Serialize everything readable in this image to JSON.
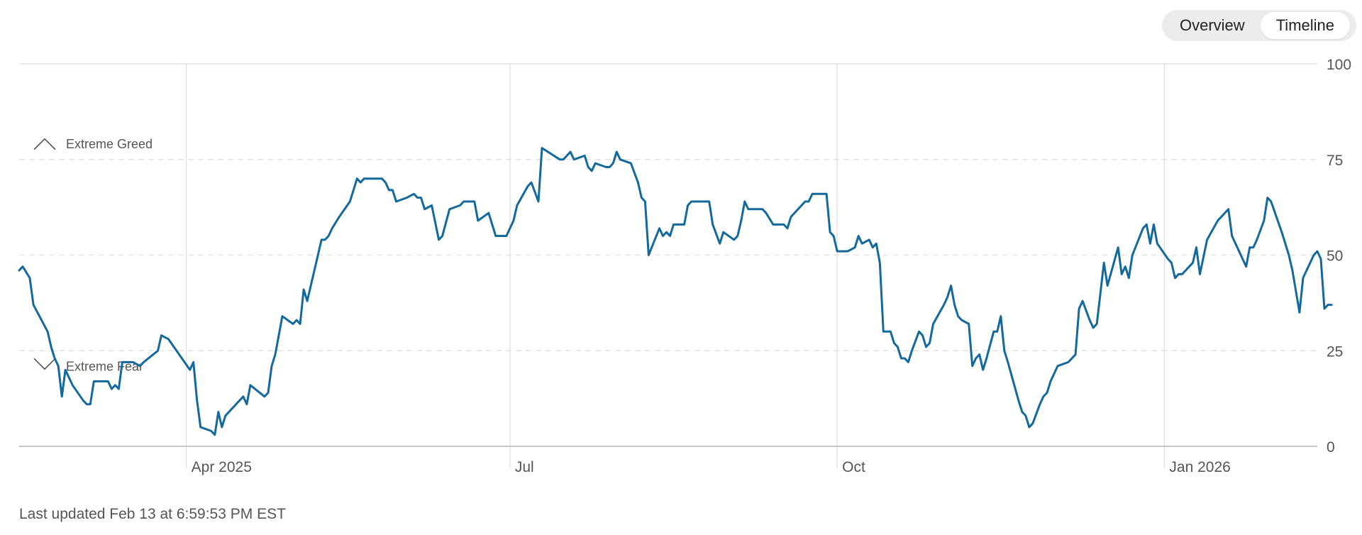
{
  "toggle": {
    "overview_label": "Overview",
    "timeline_label": "Timeline",
    "active": "Timeline"
  },
  "footer": {
    "last_updated": "Last updated Feb 13 at 6:59:53 PM EST"
  },
  "chart_data": {
    "type": "line",
    "title": "",
    "xlabel": "",
    "ylabel": "",
    "ylim": [
      0,
      100
    ],
    "y_ticks": [
      0,
      25,
      50,
      75,
      100
    ],
    "x_tick_labels": [
      {
        "label": "Apr 2025",
        "x": "2025-04-01"
      },
      {
        "label": "Jul",
        "x": "2025-07-01"
      },
      {
        "label": "Oct",
        "x": "2025-10-01"
      },
      {
        "label": "Jan 2026",
        "x": "2026-01-01"
      }
    ],
    "x_range": [
      "2025-02-13",
      "2026-02-13"
    ],
    "zones": [
      {
        "label": "Extreme Greed",
        "icon": "chevron-up-icon",
        "level": 75
      },
      {
        "label": "Extreme Fear",
        "icon": "chevron-down-icon",
        "level": 25
      }
    ],
    "line_color": "#13699c",
    "series": [
      {
        "points": [
          [
            "2025-02-13",
            46
          ],
          [
            "2025-02-14",
            47
          ],
          [
            "2025-02-16",
            44
          ],
          [
            "2025-02-17",
            37
          ],
          [
            "2025-02-21",
            30
          ],
          [
            "2025-02-22",
            26
          ],
          [
            "2025-02-23",
            23
          ],
          [
            "2025-02-24",
            21
          ],
          [
            "2025-02-25",
            13
          ],
          [
            "2025-02-26",
            20
          ],
          [
            "2025-02-28",
            16
          ],
          [
            "2025-03-03",
            12
          ],
          [
            "2025-03-04",
            11
          ],
          [
            "2025-03-05",
            11
          ],
          [
            "2025-03-06",
            17
          ],
          [
            "2025-03-07",
            17
          ],
          [
            "2025-03-10",
            17
          ],
          [
            "2025-03-11",
            15
          ],
          [
            "2025-03-12",
            16
          ],
          [
            "2025-03-13",
            15
          ],
          [
            "2025-03-14",
            22
          ],
          [
            "2025-03-17",
            22
          ],
          [
            "2025-03-19",
            21
          ],
          [
            "2025-03-20",
            22
          ],
          [
            "2025-03-24",
            25
          ],
          [
            "2025-03-25",
            29
          ],
          [
            "2025-03-27",
            28
          ],
          [
            "2025-04-02",
            20
          ],
          [
            "2025-04-03",
            22
          ],
          [
            "2025-04-04",
            12
          ],
          [
            "2025-04-05",
            5
          ],
          [
            "2025-04-08",
            4
          ],
          [
            "2025-04-09",
            3
          ],
          [
            "2025-04-10",
            9
          ],
          [
            "2025-04-11",
            5
          ],
          [
            "2025-04-12",
            8
          ],
          [
            "2025-04-16",
            12
          ],
          [
            "2025-04-17",
            13
          ],
          [
            "2025-04-18",
            11
          ],
          [
            "2025-04-19",
            16
          ],
          [
            "2025-04-23",
            13
          ],
          [
            "2025-04-24",
            14
          ],
          [
            "2025-04-25",
            21
          ],
          [
            "2025-04-26",
            24
          ],
          [
            "2025-04-28",
            34
          ],
          [
            "2025-05-01",
            32
          ],
          [
            "2025-05-02",
            33
          ],
          [
            "2025-05-03",
            32
          ],
          [
            "2025-05-04",
            41
          ],
          [
            "2025-05-05",
            38
          ],
          [
            "2025-05-08",
            50
          ],
          [
            "2025-05-09",
            54
          ],
          [
            "2025-05-10",
            54
          ],
          [
            "2025-05-11",
            55
          ],
          [
            "2025-05-12",
            57
          ],
          [
            "2025-05-14",
            60
          ],
          [
            "2025-05-17",
            64
          ],
          [
            "2025-05-18",
            67
          ],
          [
            "2025-05-19",
            70
          ],
          [
            "2025-05-20",
            69
          ],
          [
            "2025-05-21",
            70
          ],
          [
            "2025-05-23",
            70
          ],
          [
            "2025-05-26",
            70
          ],
          [
            "2025-05-27",
            69
          ],
          [
            "2025-05-28",
            67
          ],
          [
            "2025-05-29",
            67
          ],
          [
            "2025-05-30",
            64
          ],
          [
            "2025-06-02",
            65
          ],
          [
            "2025-06-04",
            66
          ],
          [
            "2025-06-05",
            65
          ],
          [
            "2025-06-06",
            65
          ],
          [
            "2025-06-07",
            62
          ],
          [
            "2025-06-09",
            63
          ],
          [
            "2025-06-11",
            54
          ],
          [
            "2025-06-12",
            55
          ],
          [
            "2025-06-14",
            62
          ],
          [
            "2025-06-17",
            63
          ],
          [
            "2025-06-18",
            64
          ],
          [
            "2025-06-21",
            64
          ],
          [
            "2025-06-22",
            59
          ],
          [
            "2025-06-25",
            61
          ],
          [
            "2025-06-27",
            55
          ],
          [
            "2025-06-30",
            55
          ],
          [
            "2025-07-01",
            57
          ],
          [
            "2025-07-02",
            59
          ],
          [
            "2025-07-03",
            63
          ],
          [
            "2025-07-06",
            68
          ],
          [
            "2025-07-07",
            69
          ],
          [
            "2025-07-09",
            64
          ],
          [
            "2025-07-10",
            78
          ],
          [
            "2025-07-15",
            75
          ],
          [
            "2025-07-16",
            75
          ],
          [
            "2025-07-18",
            77
          ],
          [
            "2025-07-19",
            75
          ],
          [
            "2025-07-22",
            76
          ],
          [
            "2025-07-23",
            73
          ],
          [
            "2025-07-24",
            72
          ],
          [
            "2025-07-25",
            74
          ],
          [
            "2025-07-28",
            73
          ],
          [
            "2025-07-29",
            73
          ],
          [
            "2025-07-30",
            74
          ],
          [
            "2025-07-31",
            77
          ],
          [
            "2025-08-01",
            75
          ],
          [
            "2025-08-04",
            74
          ],
          [
            "2025-08-06",
            69
          ],
          [
            "2025-08-07",
            65
          ],
          [
            "2025-08-08",
            64
          ],
          [
            "2025-08-09",
            50
          ],
          [
            "2025-08-12",
            57
          ],
          [
            "2025-08-13",
            55
          ],
          [
            "2025-08-14",
            56
          ],
          [
            "2025-08-15",
            55
          ],
          [
            "2025-08-16",
            58
          ],
          [
            "2025-08-19",
            58
          ],
          [
            "2025-08-20",
            63
          ],
          [
            "2025-08-21",
            64
          ],
          [
            "2025-08-26",
            64
          ],
          [
            "2025-08-27",
            58
          ],
          [
            "2025-08-29",
            53
          ],
          [
            "2025-08-30",
            56
          ],
          [
            "2025-09-02",
            54
          ],
          [
            "2025-09-03",
            55
          ],
          [
            "2025-09-04",
            59
          ],
          [
            "2025-09-05",
            64
          ],
          [
            "2025-09-06",
            62
          ],
          [
            "2025-09-09",
            62
          ],
          [
            "2025-09-10",
            62
          ],
          [
            "2025-09-11",
            61
          ],
          [
            "2025-09-13",
            58
          ],
          [
            "2025-09-16",
            58
          ],
          [
            "2025-09-17",
            57
          ],
          [
            "2025-09-18",
            60
          ],
          [
            "2025-09-21",
            63
          ],
          [
            "2025-09-22",
            64
          ],
          [
            "2025-09-23",
            64
          ],
          [
            "2025-09-24",
            66
          ],
          [
            "2025-09-25",
            66
          ],
          [
            "2025-09-28",
            66
          ],
          [
            "2025-09-29",
            56
          ],
          [
            "2025-09-30",
            55
          ],
          [
            "2025-10-01",
            51
          ],
          [
            "2025-10-02",
            51
          ],
          [
            "2025-10-04",
            51
          ],
          [
            "2025-10-06",
            52
          ],
          [
            "2025-10-07",
            55
          ],
          [
            "2025-10-08",
            53
          ],
          [
            "2025-10-10",
            54
          ],
          [
            "2025-10-11",
            52
          ],
          [
            "2025-10-12",
            53
          ],
          [
            "2025-10-13",
            48
          ],
          [
            "2025-10-14",
            30
          ],
          [
            "2025-10-16",
            30
          ],
          [
            "2025-10-17",
            27
          ],
          [
            "2025-10-18",
            26
          ],
          [
            "2025-10-19",
            23
          ],
          [
            "2025-10-20",
            23
          ],
          [
            "2025-10-21",
            22
          ],
          [
            "2025-10-22",
            25
          ],
          [
            "2025-10-24",
            30
          ],
          [
            "2025-10-25",
            29
          ],
          [
            "2025-10-26",
            26
          ],
          [
            "2025-10-27",
            27
          ],
          [
            "2025-10-28",
            32
          ],
          [
            "2025-10-31",
            37
          ],
          [
            "2025-11-01",
            39
          ],
          [
            "2025-11-02",
            42
          ],
          [
            "2025-11-03",
            37
          ],
          [
            "2025-11-04",
            34
          ],
          [
            "2025-11-05",
            33
          ],
          [
            "2025-11-07",
            32
          ],
          [
            "2025-11-08",
            21
          ],
          [
            "2025-11-09",
            23
          ],
          [
            "2025-11-10",
            24
          ],
          [
            "2025-11-11",
            20
          ],
          [
            "2025-11-12",
            23
          ],
          [
            "2025-11-14",
            30
          ],
          [
            "2025-11-15",
            30
          ],
          [
            "2025-11-16",
            34
          ],
          [
            "2025-11-17",
            25
          ],
          [
            "2025-11-18",
            22
          ],
          [
            "2025-11-21",
            12
          ],
          [
            "2025-11-22",
            9
          ],
          [
            "2025-11-23",
            8
          ],
          [
            "2025-11-24",
            5
          ],
          [
            "2025-11-25",
            6
          ],
          [
            "2025-11-27",
            11
          ],
          [
            "2025-11-28",
            13
          ],
          [
            "2025-11-29",
            14
          ],
          [
            "2025-11-30",
            17
          ],
          [
            "2025-12-01",
            19
          ],
          [
            "2025-12-02",
            21
          ],
          [
            "2025-12-05",
            22
          ],
          [
            "2025-12-07",
            24
          ],
          [
            "2025-12-08",
            36
          ],
          [
            "2025-12-09",
            38
          ],
          [
            "2025-12-11",
            33
          ],
          [
            "2025-12-12",
            31
          ],
          [
            "2025-12-13",
            32
          ],
          [
            "2025-12-15",
            48
          ],
          [
            "2025-12-16",
            42
          ],
          [
            "2025-12-19",
            52
          ],
          [
            "2025-12-20",
            45
          ],
          [
            "2025-12-21",
            47
          ],
          [
            "2025-12-22",
            44
          ],
          [
            "2025-12-23",
            50
          ],
          [
            "2025-12-26",
            57
          ],
          [
            "2025-12-27",
            58
          ],
          [
            "2025-12-28",
            53
          ],
          [
            "2025-12-29",
            58
          ],
          [
            "2025-12-30",
            53
          ],
          [
            "2026-01-02",
            49
          ],
          [
            "2026-01-03",
            48
          ],
          [
            "2026-01-04",
            44
          ],
          [
            "2026-01-05",
            45
          ],
          [
            "2026-01-06",
            45
          ],
          [
            "2026-01-09",
            48
          ],
          [
            "2026-01-10",
            52
          ],
          [
            "2026-01-11",
            45
          ],
          [
            "2026-01-13",
            54
          ],
          [
            "2026-01-16",
            59
          ],
          [
            "2026-01-17",
            60
          ],
          [
            "2026-01-19",
            62
          ],
          [
            "2026-01-20",
            55
          ],
          [
            "2026-01-24",
            47
          ],
          [
            "2026-01-25",
            52
          ],
          [
            "2026-01-26",
            52
          ],
          [
            "2026-01-27",
            54
          ],
          [
            "2026-01-29",
            59
          ],
          [
            "2026-01-30",
            65
          ],
          [
            "2026-01-31",
            64
          ],
          [
            "2026-02-03",
            56
          ],
          [
            "2026-02-05",
            50
          ],
          [
            "2026-02-06",
            46
          ],
          [
            "2026-02-08",
            35
          ],
          [
            "2026-02-09",
            44
          ],
          [
            "2026-02-12",
            50
          ],
          [
            "2026-02-13",
            51
          ],
          [
            "2026-02-14",
            49
          ],
          [
            "2026-02-15",
            36
          ],
          [
            "2026-02-16",
            37
          ],
          [
            "2026-02-17",
            37
          ]
        ]
      }
    ]
  }
}
